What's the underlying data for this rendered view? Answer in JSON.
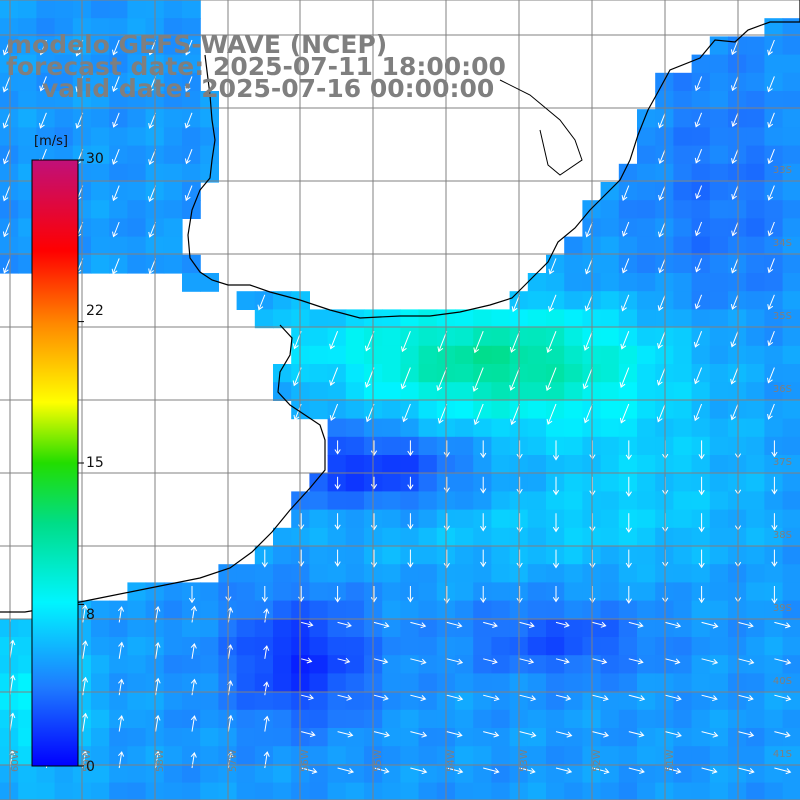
{
  "title": {
    "line1": "modelo GEFS-WAVE (NCEP)",
    "line2": "forecast date: 2025-07-11 18:00:00",
    "line3": "valid date: 2025-07-16 00:00:00"
  },
  "colorbar": {
    "unit": "[m/s]",
    "ticks": [
      "30",
      "22",
      "15",
      "8",
      "0"
    ],
    "tick_values": [
      30,
      22,
      15,
      8,
      0
    ],
    "min": 0,
    "max": 30
  },
  "lat_labels": [
    "33S",
    "34S",
    "35S",
    "36S",
    "37S",
    "38S",
    "39S",
    "40S",
    "41S"
  ],
  "lon_labels": [
    "60W",
    "59W",
    "58W",
    "57W",
    "56W",
    "55W",
    "54W",
    "53W",
    "52W",
    "51W"
  ],
  "colors": {
    "title": "#7f7f7f",
    "land": "#ffffff",
    "grid": "#808080",
    "coast": "#000000",
    "arrows": "#ffffff"
  }
}
